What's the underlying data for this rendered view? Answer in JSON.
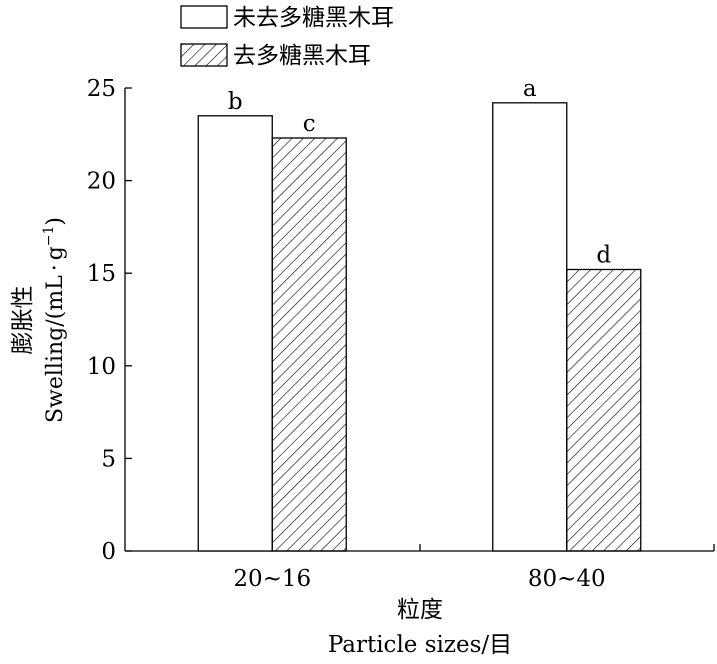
{
  "chart_data": {
    "type": "bar",
    "categories": [
      "20~16",
      "80~40"
    ],
    "series": [
      {
        "name": "未去多糖黑木耳",
        "values": [
          23.5,
          24.2
        ],
        "labels": [
          "b",
          "a"
        ],
        "fill": "none",
        "color": "#000000"
      },
      {
        "name": "去多糖黑木耳",
        "values": [
          22.3,
          15.2
        ],
        "labels": [
          "c",
          "d"
        ],
        "fill": "hatch",
        "color": "#000000"
      }
    ],
    "xlabel_cn": "粒度",
    "xlabel_en": "Particle sizes/目",
    "ylabel_cn": "膨胀性",
    "ylabel_en_prefix": "Swelling/(mL",
    "ylabel_en_dot": "·",
    "ylabel_en_unit": "g",
    "ylabel_en_exp": "−1",
    "ylabel_en_suffix": ")",
    "yticks": [
      0,
      5,
      10,
      15,
      20,
      25
    ],
    "ylim": [
      0,
      25
    ],
    "grid": false,
    "legend_position": "top-left"
  }
}
